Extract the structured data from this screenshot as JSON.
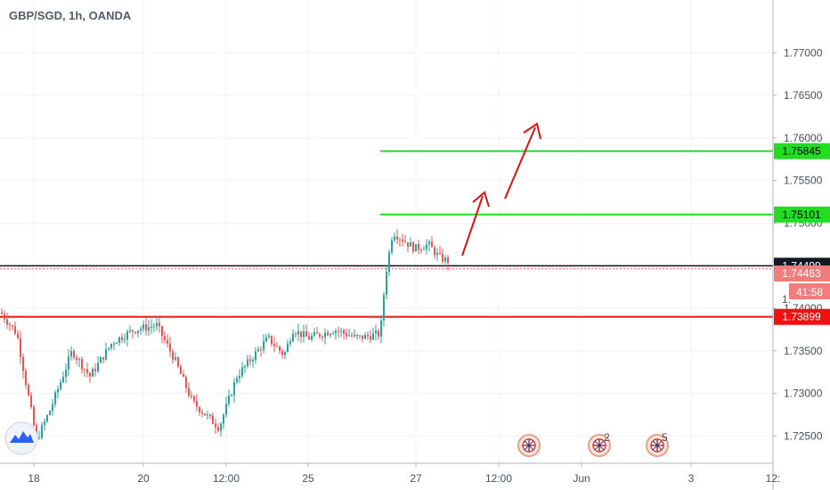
{
  "chart_data": {
    "type": "candlestick",
    "title": "GBP/SGD, 1h, OANDA",
    "ylim": [
      1.7218,
      1.7762
    ],
    "y_ticks": [
      1.77,
      1.765,
      1.76,
      1.755,
      1.75,
      1.745,
      1.74,
      1.735,
      1.73,
      1.725
    ],
    "y_tick_labels": [
      "1.77000",
      "1.76500",
      "1.76000",
      "1.75500",
      "1.75000",
      "1.74500",
      "1.74000",
      "1.73500",
      "1.73000",
      "1.72500"
    ],
    "x_ticks": [
      "18",
      "20",
      "12:00",
      "25",
      "27",
      "12:00",
      "Jun",
      "3",
      "12:"
    ],
    "grid": true,
    "lines": [
      {
        "label": "1.75845",
        "value": 1.75845,
        "color": "#22dd22"
      },
      {
        "label": "1.75101",
        "value": 1.75101,
        "color": "#22dd22"
      },
      {
        "label": "1.73899",
        "value": 1.73899,
        "color": "#ee1111"
      }
    ],
    "current_price": {
      "label": "1.74499",
      "value": 1.74499
    },
    "bid_price": {
      "label": "1.74463",
      "value": 1.74463
    },
    "countdown": "41:58",
    "partial_label": "1.",
    "up_color": "#26a69a",
    "down_color": "#ef5350",
    "events": [
      {
        "badge": ""
      },
      {
        "badge": "2"
      },
      {
        "badge": "5"
      }
    ]
  }
}
